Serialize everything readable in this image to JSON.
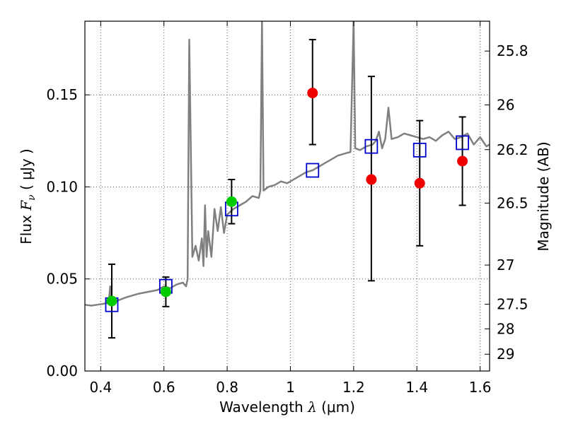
{
  "chart_data": {
    "type": "scatter",
    "title": "",
    "xlabel": {
      "prefix": "Wavelength  ",
      "symbol": "λ",
      "unit": " (μm)"
    },
    "ylabel": {
      "prefix": "Flux  ",
      "symbol": "F",
      "sub": "ν",
      "unit": "  ( μJy )"
    },
    "y2label": "Magnitude (AB)",
    "xlim": [
      0.35,
      1.63
    ],
    "ylim": [
      0.0,
      0.19
    ],
    "grid": true,
    "x_ticks": [
      {
        "v": 0.4,
        "label": "0.4"
      },
      {
        "v": 0.6,
        "label": "0.6"
      },
      {
        "v": 0.8,
        "label": "0.8"
      },
      {
        "v": 1.0,
        "label": "1"
      },
      {
        "v": 1.2,
        "label": "1.2"
      },
      {
        "v": 1.4,
        "label": "1.4"
      },
      {
        "v": 1.6,
        "label": "1.6"
      }
    ],
    "y_ticks": [
      {
        "v": 0.0,
        "label": "0.00"
      },
      {
        "v": 0.05,
        "label": "0.05"
      },
      {
        "v": 0.1,
        "label": "0.10"
      },
      {
        "v": 0.15,
        "label": "0.15"
      }
    ],
    "y2_ticks": [
      {
        "mag": 25.8,
        "label": "25.8"
      },
      {
        "mag": 26.0,
        "label": "26"
      },
      {
        "mag": 26.2,
        "label": "26.2"
      },
      {
        "mag": 26.5,
        "label": "26.5"
      },
      {
        "mag": 27.0,
        "label": "27"
      },
      {
        "mag": 27.5,
        "label": "27.5"
      },
      {
        "mag": 28.0,
        "label": "28"
      },
      {
        "mag": 29.0,
        "label": "29"
      }
    ],
    "model_spectrum": {
      "color": "#808080",
      "points": [
        [
          0.35,
          0.036
        ],
        [
          0.37,
          0.0355
        ],
        [
          0.39,
          0.036
        ],
        [
          0.41,
          0.0365
        ],
        [
          0.425,
          0.037
        ],
        [
          0.43,
          0.046
        ],
        [
          0.435,
          0.036
        ],
        [
          0.45,
          0.038
        ],
        [
          0.48,
          0.04
        ],
        [
          0.5,
          0.041
        ],
        [
          0.52,
          0.042
        ],
        [
          0.55,
          0.043
        ],
        [
          0.58,
          0.044
        ],
        [
          0.6,
          0.046
        ],
        [
          0.62,
          0.045
        ],
        [
          0.64,
          0.047
        ],
        [
          0.66,
          0.048
        ],
        [
          0.67,
          0.046
        ],
        [
          0.675,
          0.05
        ],
        [
          0.68,
          0.18
        ],
        [
          0.69,
          0.062
        ],
        [
          0.7,
          0.068
        ],
        [
          0.71,
          0.06
        ],
        [
          0.72,
          0.072
        ],
        [
          0.725,
          0.057
        ],
        [
          0.73,
          0.09
        ],
        [
          0.735,
          0.062
        ],
        [
          0.74,
          0.076
        ],
        [
          0.75,
          0.062
        ],
        [
          0.76,
          0.088
        ],
        [
          0.77,
          0.076
        ],
        [
          0.78,
          0.089
        ],
        [
          0.79,
          0.075
        ],
        [
          0.8,
          0.085
        ],
        [
          0.82,
          0.088
        ],
        [
          0.84,
          0.09
        ],
        [
          0.86,
          0.092
        ],
        [
          0.88,
          0.095
        ],
        [
          0.9,
          0.094
        ],
        [
          0.905,
          0.098
        ],
        [
          0.91,
          0.19
        ],
        [
          0.915,
          0.098
        ],
        [
          0.93,
          0.1
        ],
        [
          0.95,
          0.101
        ],
        [
          0.97,
          0.103
        ],
        [
          0.99,
          0.102
        ],
        [
          1.01,
          0.104
        ],
        [
          1.03,
          0.106
        ],
        [
          1.05,
          0.108
        ],
        [
          1.07,
          0.109
        ],
        [
          1.09,
          0.111
        ],
        [
          1.11,
          0.113
        ],
        [
          1.13,
          0.115
        ],
        [
          1.15,
          0.117
        ],
        [
          1.17,
          0.118
        ],
        [
          1.19,
          0.119
        ],
        [
          1.2,
          0.19
        ],
        [
          1.205,
          0.121
        ],
        [
          1.22,
          0.12
        ],
        [
          1.24,
          0.122
        ],
        [
          1.26,
          0.123
        ],
        [
          1.27,
          0.125
        ],
        [
          1.28,
          0.13
        ],
        [
          1.29,
          0.121
        ],
        [
          1.3,
          0.126
        ],
        [
          1.31,
          0.143
        ],
        [
          1.32,
          0.126
        ],
        [
          1.34,
          0.127
        ],
        [
          1.36,
          0.129
        ],
        [
          1.38,
          0.128
        ],
        [
          1.4,
          0.127
        ],
        [
          1.42,
          0.126
        ],
        [
          1.44,
          0.127
        ],
        [
          1.46,
          0.125
        ],
        [
          1.48,
          0.128
        ],
        [
          1.5,
          0.13
        ],
        [
          1.52,
          0.126
        ],
        [
          1.54,
          0.127
        ],
        [
          1.56,
          0.129
        ],
        [
          1.58,
          0.123
        ],
        [
          1.6,
          0.127
        ],
        [
          1.62,
          0.122
        ],
        [
          1.63,
          0.123
        ]
      ]
    },
    "model_photometry": {
      "marker": "open-square",
      "color": "#0000cc",
      "points": [
        {
          "x": 0.435,
          "y": 0.036
        },
        {
          "x": 0.606,
          "y": 0.046
        },
        {
          "x": 0.814,
          "y": 0.088
        },
        {
          "x": 1.07,
          "y": 0.109
        },
        {
          "x": 1.256,
          "y": 0.122
        },
        {
          "x": 1.409,
          "y": 0.12
        },
        {
          "x": 1.544,
          "y": 0.124
        }
      ]
    },
    "observed": {
      "points": [
        {
          "x": 0.435,
          "y": 0.038,
          "lo": 0.018,
          "hi": 0.058,
          "color": "#00cc00"
        },
        {
          "x": 0.606,
          "y": 0.043,
          "lo": 0.035,
          "hi": 0.051,
          "color": "#00cc00"
        },
        {
          "x": 0.814,
          "y": 0.092,
          "lo": 0.08,
          "hi": 0.104,
          "color": "#00cc00"
        },
        {
          "x": 1.07,
          "y": 0.151,
          "lo": 0.123,
          "hi": 0.18,
          "color": "#ee0000"
        },
        {
          "x": 1.256,
          "y": 0.104,
          "lo": 0.049,
          "hi": 0.16,
          "color": "#ee0000"
        },
        {
          "x": 1.409,
          "y": 0.102,
          "lo": 0.068,
          "hi": 0.136,
          "color": "#ee0000"
        },
        {
          "x": 1.544,
          "y": 0.114,
          "lo": 0.09,
          "hi": 0.138,
          "color": "#ee0000"
        }
      ]
    }
  }
}
